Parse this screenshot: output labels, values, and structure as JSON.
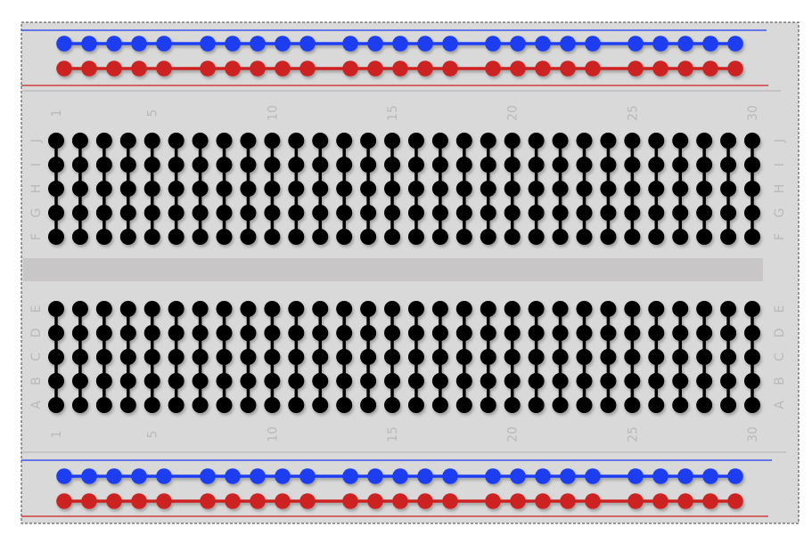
{
  "board": {
    "colors": {
      "board": "#d9d9d9",
      "divider": "#c8c6c7",
      "separator": "#bdbdbd",
      "border": "#444444",
      "blue": "#1f3cf0",
      "red": "#cc2222",
      "terminal": "#000000",
      "label": "#b9b9b9"
    },
    "column_numbers": [
      "1",
      "5",
      "10",
      "15",
      "20",
      "25",
      "30"
    ],
    "upper_row_letters": [
      "J",
      "I",
      "H",
      "G",
      "F"
    ],
    "lower_row_letters": [
      "E",
      "D",
      "C",
      "B",
      "A"
    ],
    "columns": 30,
    "rail_groups": 5,
    "holes_per_group": 5,
    "rails": [
      {
        "name": "top-negative",
        "color": "blue"
      },
      {
        "name": "top-positive",
        "color": "red"
      },
      {
        "name": "bottom-negative",
        "color": "blue"
      },
      {
        "name": "bottom-positive",
        "color": "red"
      }
    ]
  }
}
